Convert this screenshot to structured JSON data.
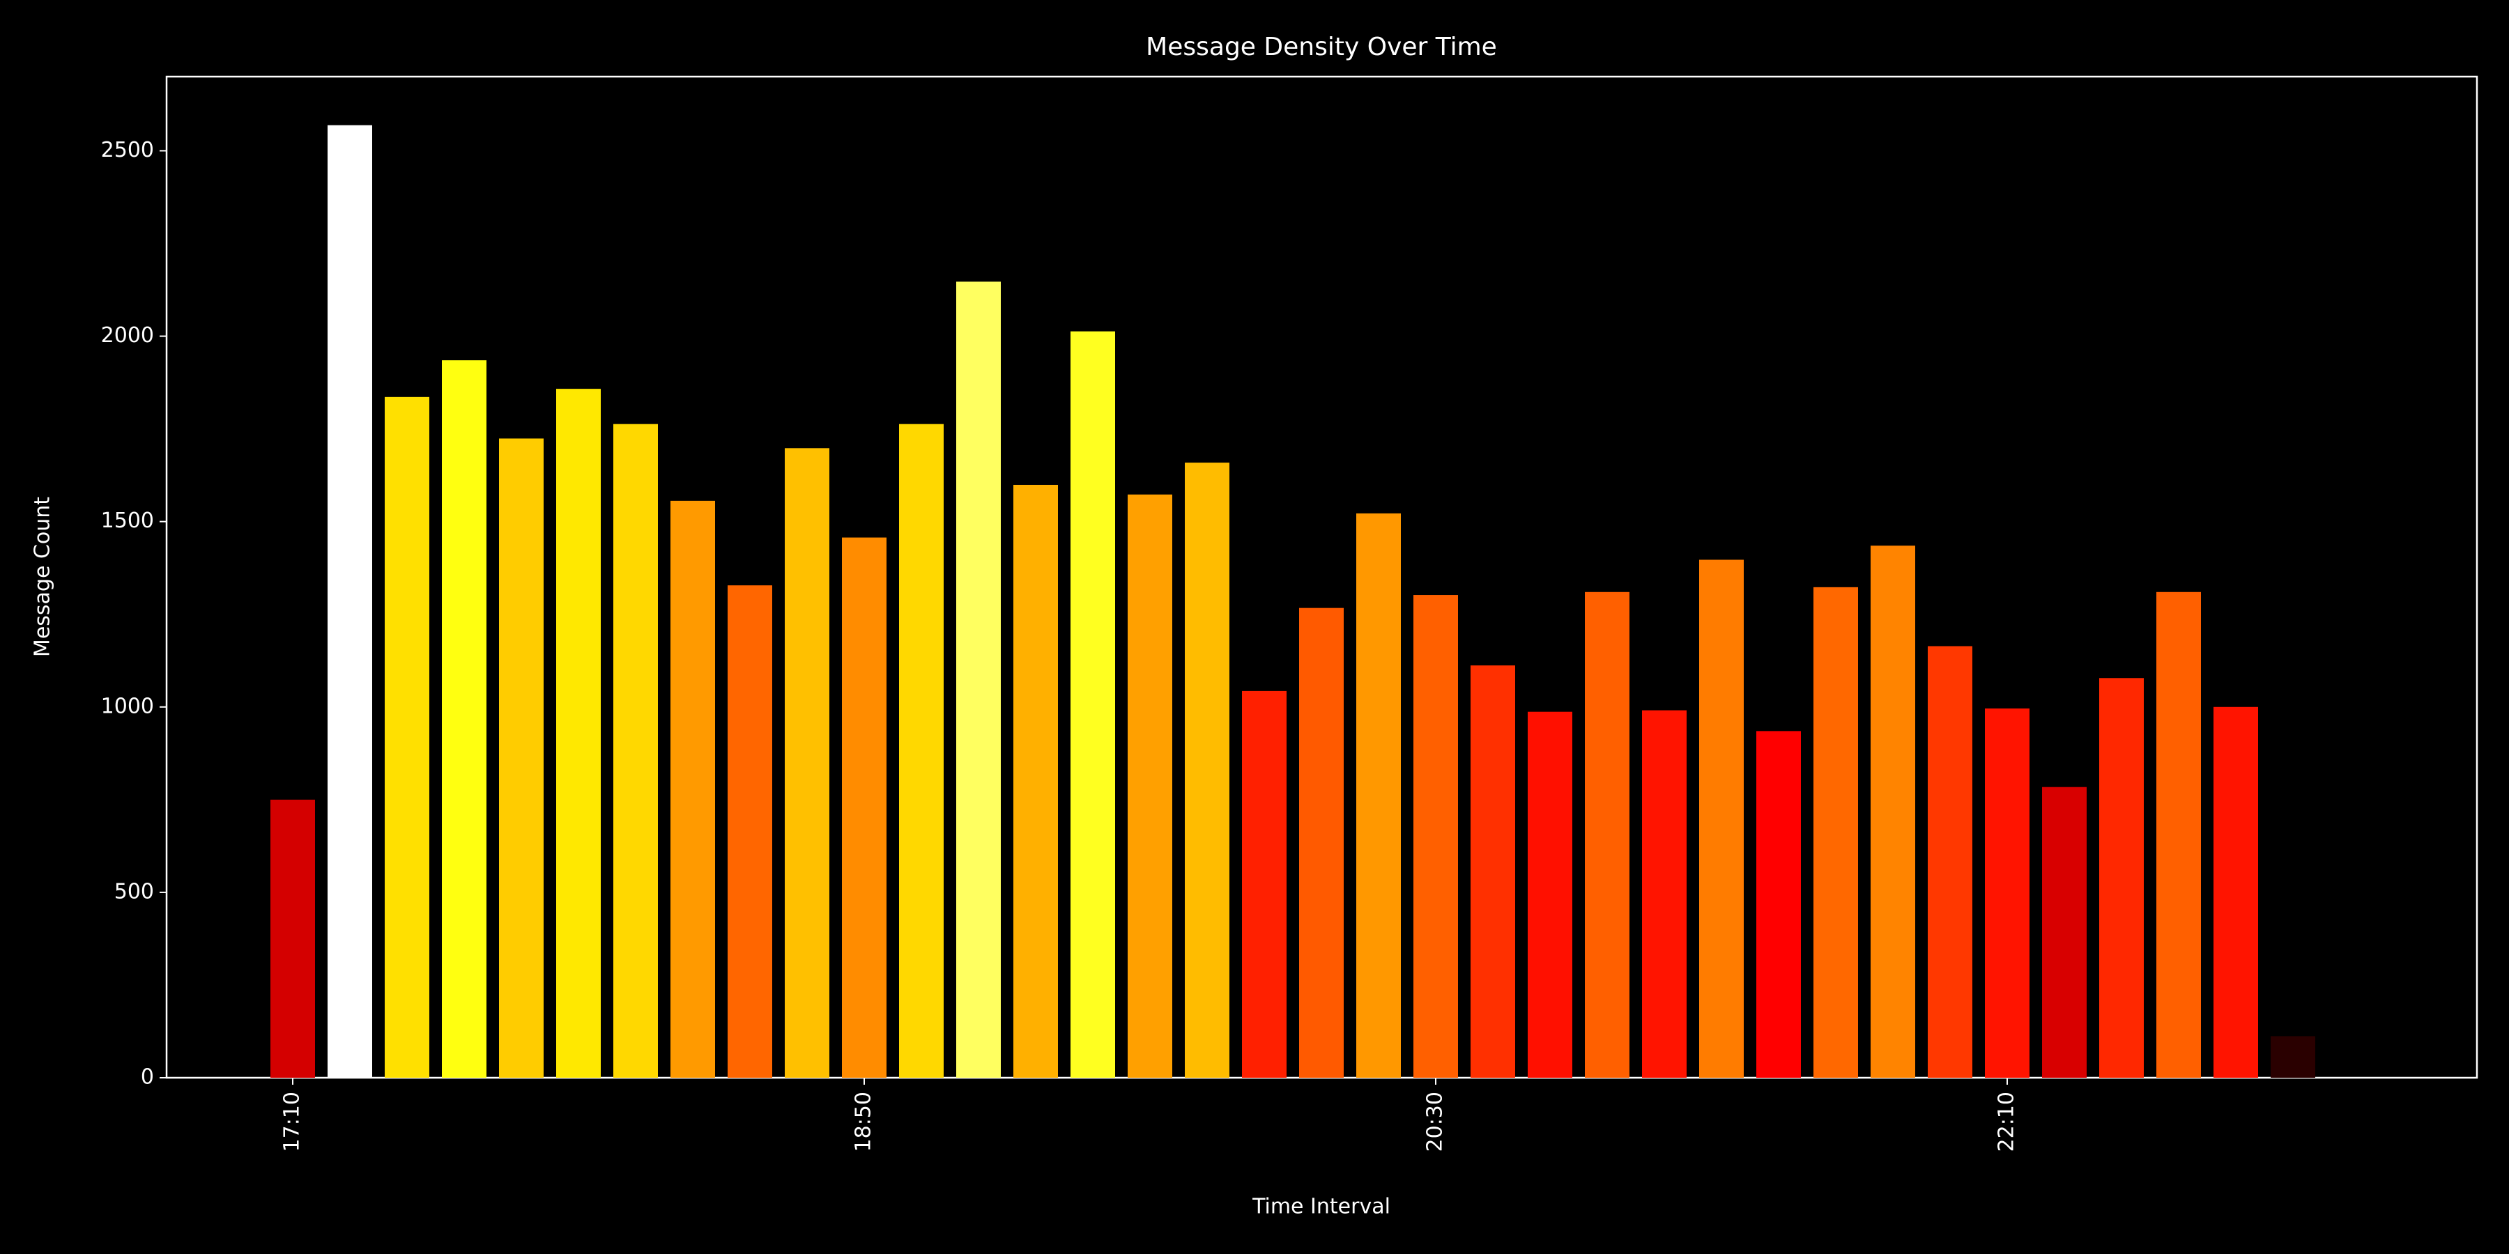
{
  "chart_data": {
    "type": "bar",
    "title": "Message Density Over Time",
    "xlabel": "Time Interval",
    "ylabel": "Message Count",
    "categories": [
      "17:10",
      null,
      null,
      null,
      null,
      null,
      null,
      null,
      null,
      null,
      "18:50",
      null,
      null,
      null,
      null,
      null,
      null,
      null,
      null,
      null,
      "20:30",
      null,
      null,
      null,
      null,
      null,
      null,
      null,
      null,
      null,
      "22:10",
      null,
      null,
      null,
      null,
      null
    ],
    "values": [
      750,
      2569,
      1836,
      1935,
      1724,
      1858,
      1763,
      1556,
      1328,
      1698,
      1457,
      1763,
      2147,
      1599,
      2013,
      1573,
      1659,
      1043,
      1267,
      1522,
      1302,
      1112,
      987,
      1310,
      991,
      1397,
      935,
      1323,
      1435,
      1164,
      996,
      784,
      1078,
      1310,
      1000,
      112
    ],
    "colors": [
      "#d40000",
      "#ffffff",
      "#ffe000",
      "#ffff10",
      "#ffcc00",
      "#ffe800",
      "#ffd800",
      "#ff9a00",
      "#ff6600",
      "#ffc000",
      "#ff8c00",
      "#ffd800",
      "#ffff60",
      "#ffb000",
      "#ffff20",
      "#ffa000",
      "#ffbc00",
      "#ff2000",
      "#ff5a00",
      "#ff9800",
      "#ff6000",
      "#ff3000",
      "#ff1000",
      "#ff6000",
      "#ff1400",
      "#ff7c00",
      "#ff0000",
      "#ff6800",
      "#ff8400",
      "#ff3800",
      "#ff1400",
      "#d80000",
      "#ff2800",
      "#ff6000",
      "#ff1400",
      "#2a0000"
    ],
    "ylim": [
      0,
      2700
    ],
    "yticks": [
      0,
      500,
      1000,
      1500,
      2000,
      2500
    ],
    "grid": false
  }
}
